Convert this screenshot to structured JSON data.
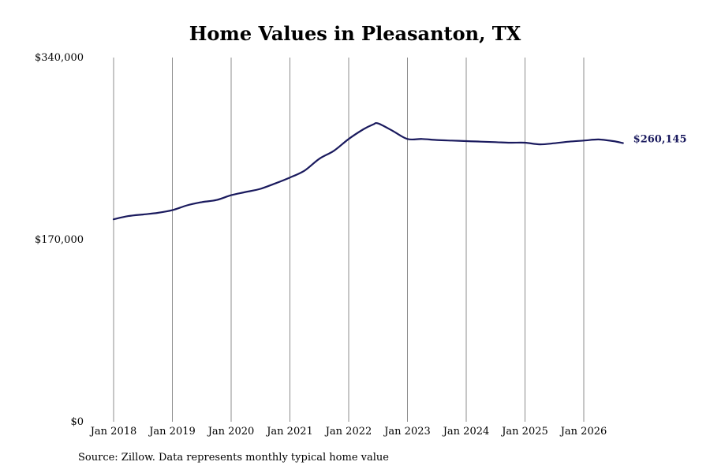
{
  "chart_data": {
    "type": "line",
    "title": "Home Values in Pleasanton, TX",
    "source": "Source: Zillow. Data represents monthly typical home value",
    "ylim": [
      0,
      340000
    ],
    "ytick_labels": [
      "$340,000",
      "$170,000",
      "$0"
    ],
    "ytick_values": [
      340000,
      170000,
      0
    ],
    "xtick_labels": [
      "Jan 2018",
      "Jan 2019",
      "Jan 2020",
      "Jan 2021",
      "Jan 2022",
      "Jan 2023",
      "Jan 2024",
      "Jan 2025",
      "Jan 2026"
    ],
    "xtick_years": [
      2018,
      2019,
      2020,
      2021,
      2022,
      2023,
      2024,
      2025,
      2026
    ],
    "grid": "vertical",
    "line_color": "#1a1a5e",
    "end_label": "$260,145",
    "series": [
      {
        "points": [
          [
            "2018-01",
            189000
          ],
          [
            "2018-04",
            192000
          ],
          [
            "2018-07",
            193500
          ],
          [
            "2018-10",
            195000
          ],
          [
            "2019-01",
            197500
          ],
          [
            "2019-04",
            202000
          ],
          [
            "2019-07",
            205000
          ],
          [
            "2019-10",
            207000
          ],
          [
            "2020-01",
            211500
          ],
          [
            "2020-04",
            214500
          ],
          [
            "2020-07",
            217500
          ],
          [
            "2020-10",
            222500
          ],
          [
            "2021-01",
            228000
          ],
          [
            "2021-04",
            234500
          ],
          [
            "2021-07",
            245500
          ],
          [
            "2021-10",
            253000
          ],
          [
            "2022-01",
            264000
          ],
          [
            "2022-04",
            273000
          ],
          [
            "2022-06",
            277500
          ],
          [
            "2022-07",
            278500
          ],
          [
            "2022-10",
            271500
          ],
          [
            "2023-01",
            264000
          ],
          [
            "2023-04",
            264000
          ],
          [
            "2023-07",
            263000
          ],
          [
            "2023-10",
            262500
          ],
          [
            "2024-01",
            262000
          ],
          [
            "2024-04",
            261500
          ],
          [
            "2024-07",
            261000
          ],
          [
            "2024-10",
            260500
          ],
          [
            "2025-01",
            260500
          ],
          [
            "2025-04",
            259000
          ],
          [
            "2025-07",
            260000
          ],
          [
            "2025-10",
            261500
          ],
          [
            "2026-01",
            262500
          ],
          [
            "2026-04",
            263500
          ],
          [
            "2026-07",
            262000
          ],
          [
            "2026-09",
            260145
          ]
        ]
      }
    ]
  }
}
